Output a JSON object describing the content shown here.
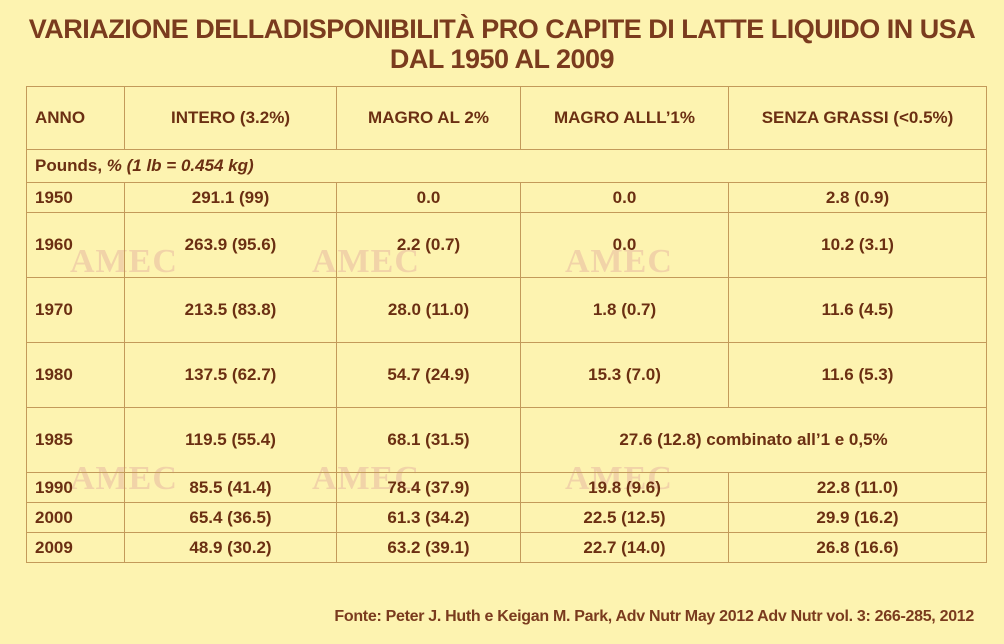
{
  "title_line1": "VARIAZIONE DELLADISPONIBILITÀ PRO CAPITE DI LATTE LIQUIDO IN USA",
  "title_line2": "DAL 1950 AL 2009",
  "watermark": "AMEC",
  "headers": [
    "ANNO",
    "INTERO (3.2%)",
    "MAGRO AL 2%",
    "MAGRO ALLL’1%",
    "SENZA GRASSI  (<0.5%)"
  ],
  "units_label_plain": "Pounds, ",
  "units_label_italic": "% (1 lb = 0.454 kg)",
  "rows": [
    {
      "anno": "1950",
      "intero": "291.1 (99)",
      "magro2": "0.0",
      "magro1": "0.0",
      "senza": "2.8 (0.9)"
    },
    {
      "anno": "1960",
      "intero": "263.9 (95.6)",
      "magro2": "2.2 (0.7)",
      "magro1": "0.0",
      "senza": "10.2 (3.1)"
    },
    {
      "anno": "1970",
      "intero": "213.5 (83.8)",
      "magro2": "28.0 (11.0)",
      "magro1": "1.8 (0.7)",
      "senza": "11.6 (4.5)"
    },
    {
      "anno": "1980",
      "intero": "137.5 (62.7)",
      "magro2": "54.7 (24.9)",
      "magro1": "15.3 (7.0)",
      "senza": "11.6 (5.3)"
    },
    {
      "anno": "1985",
      "intero": "119.5 (55.4)",
      "magro2": "68.1 (31.5)",
      "combined": "27.6 (12.8) combinato all’1 e 0,5%"
    },
    {
      "anno": "1990",
      "intero": "85.5 (41.4)",
      "magro2": "78.4 (37.9)",
      "magro1": "19.8 (9.6)",
      "senza": "22.8 (11.0)"
    },
    {
      "anno": "2000",
      "intero": "65.4 (36.5)",
      "magro2": "61.3 (34.2)",
      "magro1": "22.5 (12.5)",
      "senza": "29.9 (16.2)"
    },
    {
      "anno": "2009",
      "intero": "48.9 (30.2)",
      "magro2": "63.2 (39.1)",
      "magro1": "22.7 (14.0)",
      "senza": "26.8 (16.6)"
    }
  ],
  "source": "Fonte: Peter J. Huth e Keigan M. Park, Adv Nutr May 2012 Adv Nutr vol. 3: 266-285, 2012",
  "colors": {
    "background": "#fdf3b0",
    "text": "#6b2f12",
    "title": "#7a3b1e",
    "grid": "#c39a5a"
  }
}
